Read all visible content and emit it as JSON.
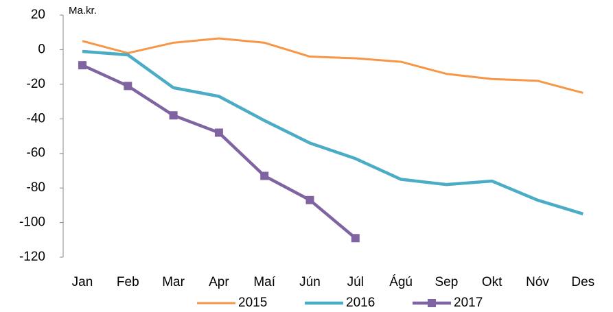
{
  "chart_data": {
    "type": "line",
    "y_label": "Ma.kr.",
    "categories": [
      "Jan",
      "Feb",
      "Mar",
      "Apr",
      "Maí",
      "Jún",
      "Júl",
      "Ágú",
      "Sep",
      "Okt",
      "Nóv",
      "Des"
    ],
    "series": [
      {
        "name": "2015",
        "color": "#f79646",
        "values": [
          5,
          -2,
          4,
          6.5,
          4,
          -4,
          -5,
          -7,
          -14,
          -17,
          -18,
          -25
        ]
      },
      {
        "name": "2016",
        "color": "#4bacc6",
        "values": [
          -1,
          -3,
          -22,
          -27,
          -41,
          -54,
          -63,
          -75,
          -78,
          -76,
          -87,
          -95
        ]
      },
      {
        "name": "2017",
        "color": "#8064a2",
        "marker": "square",
        "values": [
          -9,
          -21,
          -38,
          -48,
          -73,
          -87,
          -109,
          null,
          null,
          null,
          null,
          null
        ]
      }
    ],
    "ylim": [
      -120,
      20
    ],
    "yticks": [
      -120,
      -100,
      -80,
      -60,
      -40,
      -20,
      0,
      20
    ],
    "grid": false
  }
}
